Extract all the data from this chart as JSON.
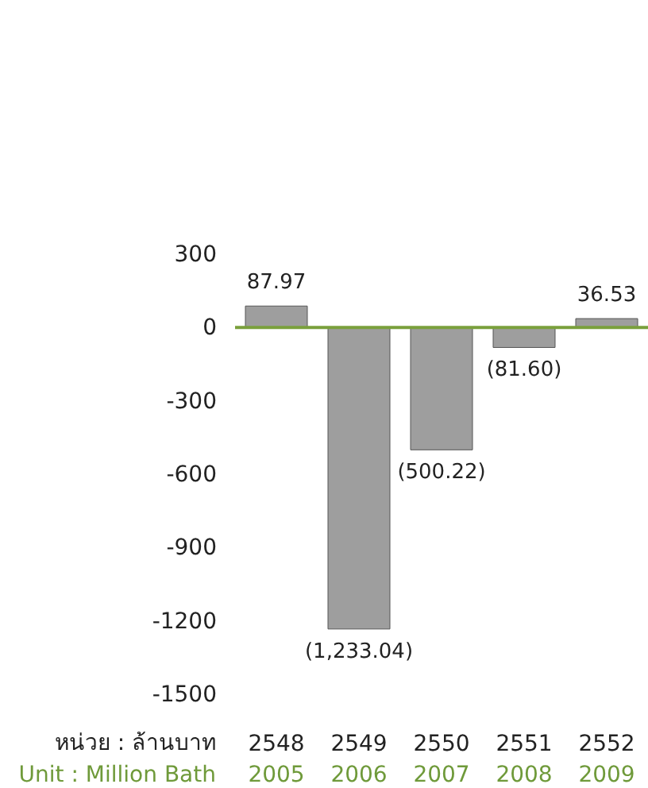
{
  "chart_data": {
    "type": "bar",
    "categories": [
      "2548\n2005",
      "2549\n2006",
      "2550\n2007",
      "2551\n2008",
      "2552\n2009"
    ],
    "values": [
      87.97,
      -1233.04,
      -500.22,
      -81.6,
      36.53
    ],
    "value_labels": [
      "87.97",
      "(1,233.04)",
      "(500.22)",
      "(81.60)",
      "36.53"
    ],
    "color": "#9e9e9e",
    "ylim": [
      -1500,
      300
    ],
    "yticks": [
      300,
      0,
      -300,
      -600,
      -900,
      -1200,
      -1500
    ],
    "ref_lines": [
      {
        "axis": "y",
        "value": 0,
        "color": "#7aa03c"
      }
    ],
    "annotations": [
      "หน่วย : ล้านบาท",
      "Unit : Million Bath"
    ],
    "grid": false
  }
}
